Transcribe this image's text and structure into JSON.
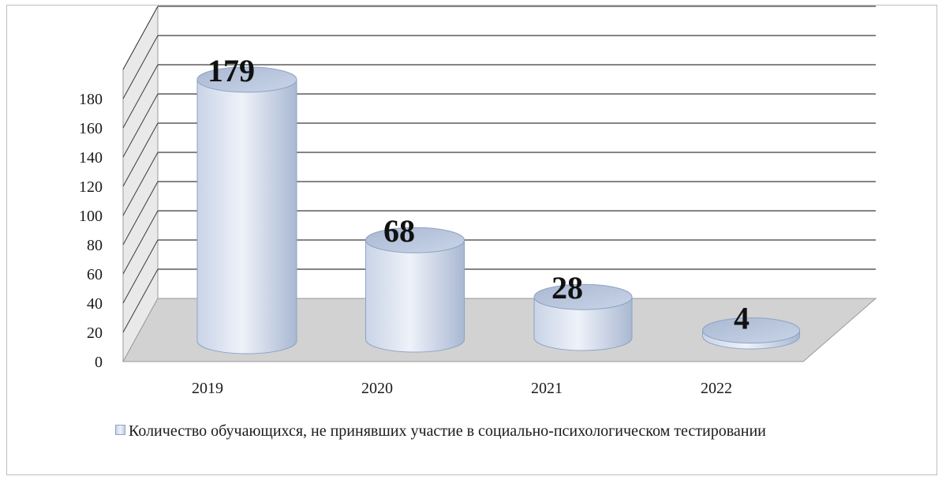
{
  "chart_data": {
    "type": "bar",
    "categories": [
      "2019",
      "2020",
      "2021",
      "2022"
    ],
    "series": [
      {
        "name": "Количество обучающихся, не принявших участие в социально-психологическом тестировании",
        "values": [
          179,
          68,
          28,
          4
        ]
      }
    ],
    "data_labels": [
      "179",
      "68",
      "28",
      "4"
    ],
    "y_ticks": [
      "0",
      "20",
      "40",
      "60",
      "80",
      "100",
      "120",
      "140",
      "160",
      "180"
    ],
    "ylim": [
      0,
      200
    ],
    "grid": true,
    "legend_position": "bottom-left",
    "bar_style": "3d-cylinder",
    "colors": {
      "bar_light": "#eef2f9",
      "bar_mid": "#c9d4e7",
      "bar_dark": "#a9b8d2",
      "bar_edge": "#8ea3c4",
      "wall": "#e9e9e9",
      "floor": "#d2d2d2",
      "grid": "#3a3a3a"
    }
  }
}
